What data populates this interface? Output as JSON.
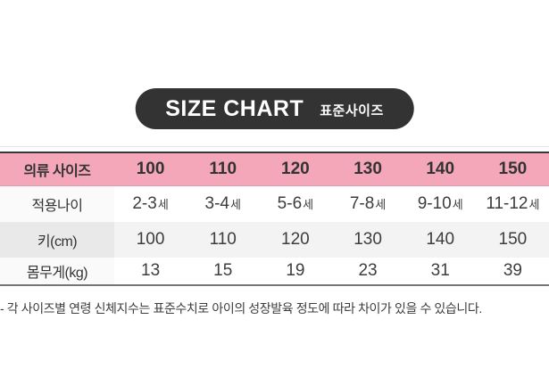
{
  "badge": {
    "title": "SIZE CHART",
    "subtitle": "표준사이즈",
    "bg_color": "#333333",
    "text_color": "#ffffff"
  },
  "table": {
    "header_bg_color": "#f3a7b8",
    "header_label": "의류 사이즈",
    "sizes": [
      "100",
      "110",
      "120",
      "130",
      "140",
      "150"
    ],
    "rows": [
      {
        "label": "적용나이",
        "unit": "세",
        "values": [
          "2-3",
          "3-4",
          "5-6",
          "7-8",
          "9-10",
          "11-12"
        ]
      },
      {
        "label": "키(cm)",
        "unit": "",
        "values": [
          "100",
          "110",
          "120",
          "130",
          "140",
          "150"
        ]
      },
      {
        "label": "몸무게(kg)",
        "unit": "",
        "values": [
          "13",
          "15",
          "19",
          "23",
          "31",
          "39"
        ]
      }
    ]
  },
  "note": "- 각 사이즈별 연령 신체지수는 표준수치로 아이의 성장발육 정도에 따라 차이가 있을 수 있습니다."
}
